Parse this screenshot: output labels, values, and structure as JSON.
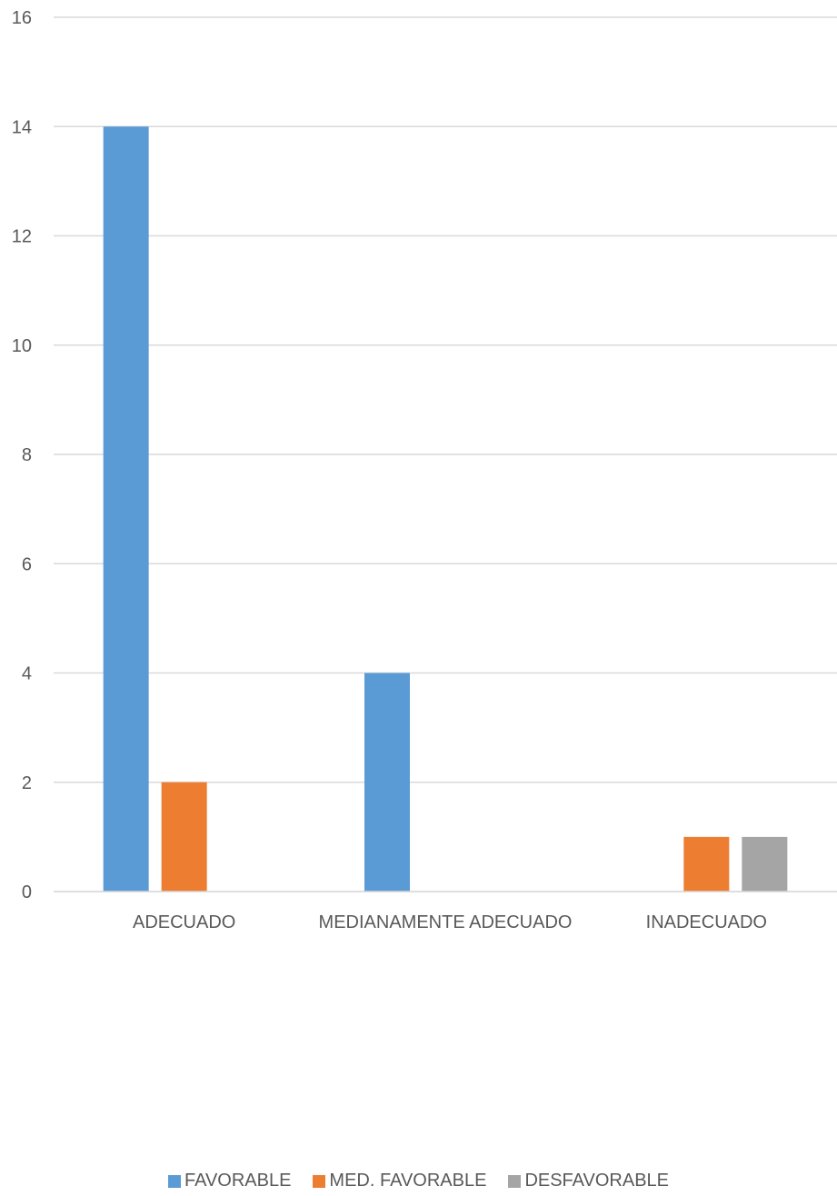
{
  "chart_data": {
    "type": "bar",
    "categories": [
      "ADECUADO",
      "MEDIANAMENTE ADECUADO",
      "INADECUADO"
    ],
    "series": [
      {
        "name": "FAVORABLE",
        "values": [
          14,
          4,
          0
        ],
        "color": "#5B9BD5"
      },
      {
        "name": "MED. FAVORABLE",
        "values": [
          2,
          0,
          1
        ],
        "color": "#ED7D31"
      },
      {
        "name": "DESFAVORABLE",
        "values": [
          0,
          0,
          1
        ],
        "color": "#A5A5A5"
      }
    ],
    "yticks": [
      "0",
      "2",
      "4",
      "6",
      "8",
      "10",
      "12",
      "14",
      "16"
    ],
    "ylim": [
      0,
      16
    ],
    "grid": true,
    "legend_position": "bottom"
  }
}
